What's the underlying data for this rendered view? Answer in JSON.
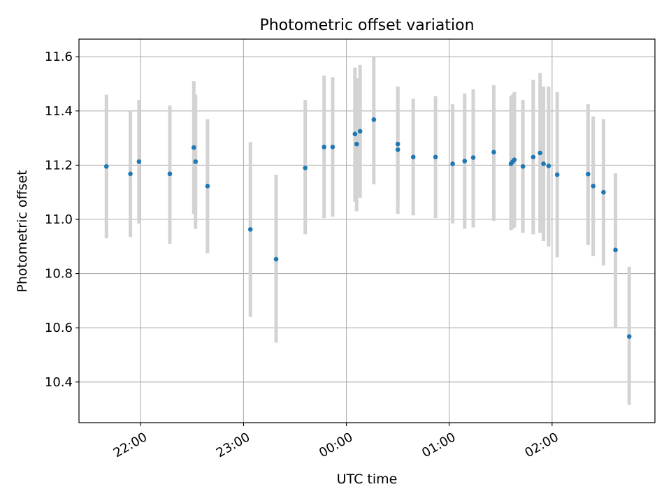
{
  "chart_data": {
    "type": "scatter",
    "title": "Photometric offset variation",
    "xlabel": "UTC time",
    "ylabel": "Photometric offset",
    "x_tick_labels": [
      "22:00",
      "23:00",
      "00:00",
      "01:00",
      "02:00"
    ],
    "x_tick_values_hours": [
      22,
      23,
      24,
      25,
      26
    ],
    "y_tick_labels": [
      "10.4",
      "10.6",
      "10.8",
      "11.0",
      "11.2",
      "11.4",
      "11.6"
    ],
    "y_tick_values": [
      10.4,
      10.6,
      10.8,
      11.0,
      11.2,
      11.4,
      11.6
    ],
    "xlim_hours": [
      21.4,
      27.0
    ],
    "ylim": [
      10.25,
      11.665
    ],
    "grid": true,
    "point_color": "#1f77b4",
    "errorbar_color": "#d3d3d3",
    "points": [
      {
        "t": "21:40",
        "y": 11.195,
        "lo": 10.93,
        "hi": 11.46
      },
      {
        "t": "21:54",
        "y": 11.168,
        "lo": 10.935,
        "hi": 11.4
      },
      {
        "t": "21:59",
        "y": 11.213,
        "lo": 10.985,
        "hi": 11.44
      },
      {
        "t": "22:17",
        "y": 11.168,
        "lo": 10.91,
        "hi": 11.42
      },
      {
        "t": "22:31",
        "y": 11.265,
        "lo": 11.02,
        "hi": 11.51
      },
      {
        "t": "22:32",
        "y": 11.213,
        "lo": 10.965,
        "hi": 11.46
      },
      {
        "t": "22:39",
        "y": 11.123,
        "lo": 10.875,
        "hi": 11.37
      },
      {
        "t": "23:04",
        "y": 10.963,
        "lo": 10.64,
        "hi": 11.285
      },
      {
        "t": "23:19",
        "y": 10.853,
        "lo": 10.545,
        "hi": 11.165
      },
      {
        "t": "23:36",
        "y": 11.19,
        "lo": 10.945,
        "hi": 11.44
      },
      {
        "t": "23:47",
        "y": 11.267,
        "lo": 11.005,
        "hi": 11.53
      },
      {
        "t": "23:52",
        "y": 11.267,
        "lo": 11.01,
        "hi": 11.525
      },
      {
        "t": "00:05",
        "y": 11.315,
        "lo": 11.065,
        "hi": 11.56
      },
      {
        "t": "00:06",
        "y": 11.278,
        "lo": 11.03,
        "hi": 11.52
      },
      {
        "t": "00:08",
        "y": 11.325,
        "lo": 11.08,
        "hi": 11.57
      },
      {
        "t": "00:16",
        "y": 11.368,
        "lo": 11.13,
        "hi": 11.6
      },
      {
        "t": "00:30",
        "y": 11.278,
        "lo": 11.06,
        "hi": 11.49
      },
      {
        "t": "00:30",
        "y": 11.257,
        "lo": 11.02,
        "hi": 11.49
      },
      {
        "t": "00:39",
        "y": 11.23,
        "lo": 11.015,
        "hi": 11.445
      },
      {
        "t": "00:52",
        "y": 11.23,
        "lo": 11.005,
        "hi": 11.455
      },
      {
        "t": "01:02",
        "y": 11.205,
        "lo": 10.985,
        "hi": 11.425
      },
      {
        "t": "01:09",
        "y": 11.215,
        "lo": 10.965,
        "hi": 11.465
      },
      {
        "t": "01:14",
        "y": 11.228,
        "lo": 10.97,
        "hi": 11.48
      },
      {
        "t": "01:26",
        "y": 11.248,
        "lo": 10.995,
        "hi": 11.495
      },
      {
        "t": "01:36",
        "y": 11.205,
        "lo": 10.96,
        "hi": 11.455
      },
      {
        "t": "01:37",
        "y": 11.213,
        "lo": 10.965,
        "hi": 11.46
      },
      {
        "t": "01:38",
        "y": 11.22,
        "lo": 10.97,
        "hi": 11.47
      },
      {
        "t": "01:43",
        "y": 11.195,
        "lo": 10.95,
        "hi": 11.44
      },
      {
        "t": "01:49",
        "y": 11.23,
        "lo": 10.945,
        "hi": 11.515
      },
      {
        "t": "01:53",
        "y": 11.245,
        "lo": 10.95,
        "hi": 11.54
      },
      {
        "t": "01:55",
        "y": 11.205,
        "lo": 10.92,
        "hi": 11.49
      },
      {
        "t": "01:58",
        "y": 11.197,
        "lo": 10.9,
        "hi": 11.49
      },
      {
        "t": "02:03",
        "y": 11.165,
        "lo": 10.86,
        "hi": 11.47
      },
      {
        "t": "02:21",
        "y": 11.167,
        "lo": 10.905,
        "hi": 11.425
      },
      {
        "t": "02:24",
        "y": 11.123,
        "lo": 10.865,
        "hi": 11.38
      },
      {
        "t": "02:30",
        "y": 11.1,
        "lo": 10.83,
        "hi": 11.37
      },
      {
        "t": "02:37",
        "y": 10.887,
        "lo": 10.6,
        "hi": 11.17
      },
      {
        "t": "02:45",
        "y": 10.568,
        "lo": 10.315,
        "hi": 10.825
      }
    ]
  }
}
